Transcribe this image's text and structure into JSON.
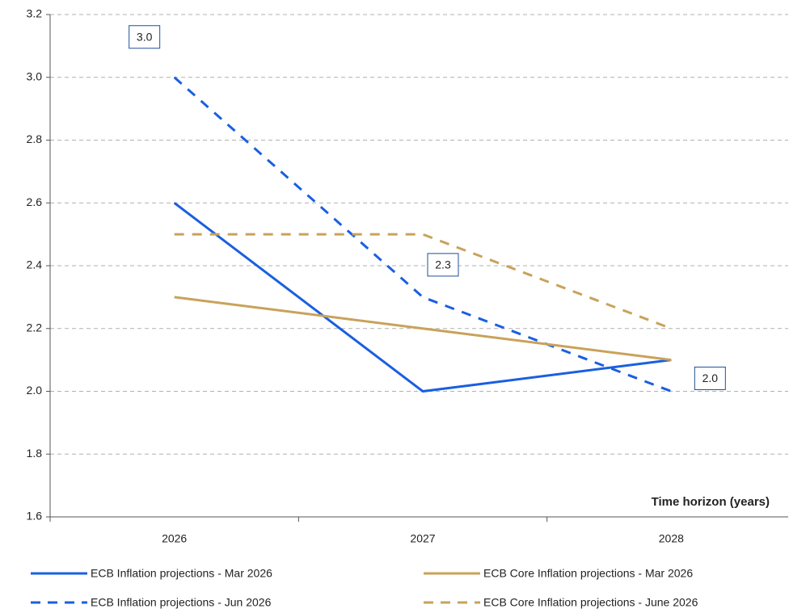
{
  "chart_data": {
    "type": "line",
    "categories": [
      "2026",
      "2027",
      "2028"
    ],
    "x_label": "Time horizon (years)",
    "series": [
      {
        "name": "ECB Inflation projections - Mar 2026",
        "color": "#1a5fe0",
        "dashed": false,
        "values": [
          2.6,
          2.0,
          2.1
        ]
      },
      {
        "name": "ECB Inflation projections - Jun 2026",
        "color": "#1a5fe0",
        "dashed": true,
        "values": [
          3.0,
          2.3,
          2.0
        ],
        "value_labels": [
          "3.0",
          "2.3",
          "2.0"
        ]
      },
      {
        "name": "ECB Core Inflation projections - Mar 2026",
        "color": "#c9a25a",
        "dashed": false,
        "values": [
          2.3,
          2.2,
          2.1
        ]
      },
      {
        "name": "ECB Core Inflation projections - June 2026",
        "color": "#c9a25a",
        "dashed": true,
        "values": [
          2.5,
          2.5,
          2.2
        ]
      }
    ],
    "ylim": [
      1.6,
      3.2
    ],
    "yticks": [
      {
        "value": 1.6,
        "label": "1.6"
      },
      {
        "value": 1.8,
        "label": "1.8"
      },
      {
        "value": 2.0,
        "label": "2.0"
      },
      {
        "value": 2.2,
        "label": "2.2"
      },
      {
        "value": 2.4,
        "label": "2.4"
      },
      {
        "value": 2.6,
        "label": "2.6"
      },
      {
        "value": 2.8,
        "label": "2.8"
      },
      {
        "value": 3.0,
        "label": "3.0"
      },
      {
        "value": 3.2,
        "label": "3.2"
      }
    ],
    "grid": true
  }
}
